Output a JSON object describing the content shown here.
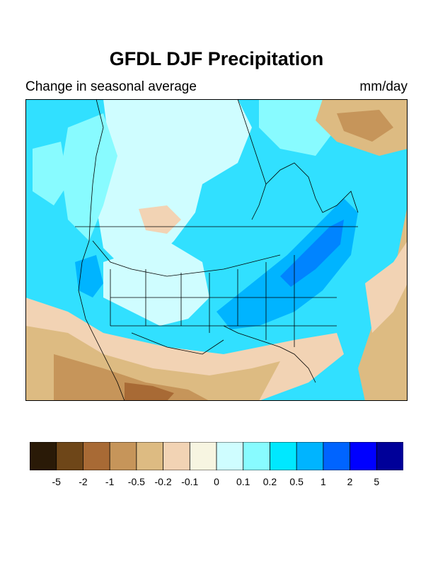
{
  "title": "GFDL DJF Precipitation",
  "subtitle_left": "Change in seasonal average",
  "subtitle_right": "mm/day",
  "colorbar": {
    "colors": [
      "#2a1a07",
      "#6e4618",
      "#a86a35",
      "#c6955a",
      "#ddbb82",
      "#f2d3b4",
      "#f7f5e1",
      "#cffdff",
      "#88fbff",
      "#00e8ff",
      "#00b4ff",
      "#0064ff",
      "#0000ff",
      "#000099"
    ],
    "labels": [
      "-5",
      "-2",
      "-1",
      "-0.5",
      "-0.2",
      "-0.1",
      "0",
      "0.1",
      "0.2",
      "0.5",
      "1",
      "2",
      "5"
    ]
  },
  "map_colors": {
    "ocean_base": "#31e0ff",
    "light_blue": "#cffdff",
    "mid_blue": "#88fbff",
    "cyan": "#00e8ff",
    "strong_blue": "#00b4ff",
    "very_strong_blue": "#0064ff",
    "neutral": "#f7f5e1",
    "tan_light": "#f2d3b4",
    "tan": "#ddbb82",
    "brown": "#c6955a",
    "dark_brown": "#a86a35"
  }
}
